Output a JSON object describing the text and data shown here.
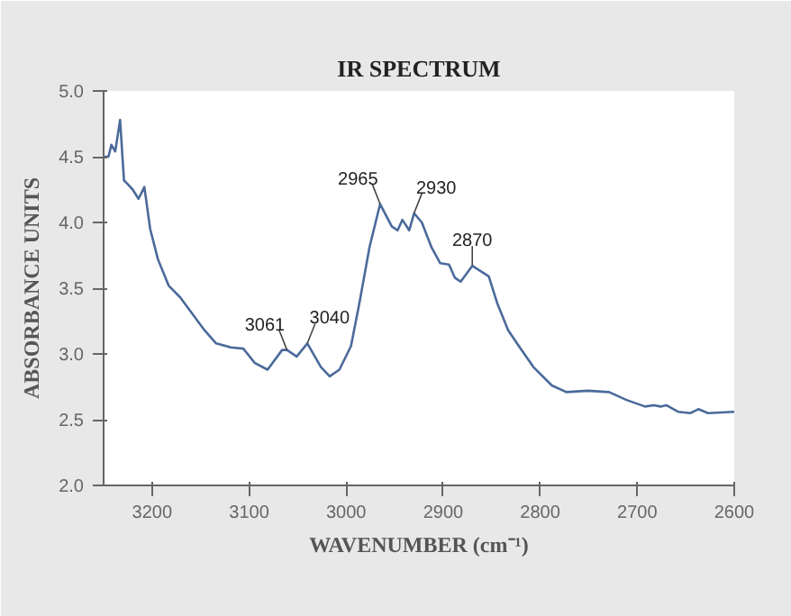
{
  "chart_data": {
    "type": "line",
    "title": "IR SPECTRUM",
    "xlabel": "WAVENUMBER (cm⁻¹)",
    "ylabel": "ABSORBANCE UNITS",
    "xlim": [
      3250,
      2600
    ],
    "xticks": [
      3200,
      3100,
      3000,
      2900,
      2800,
      2700,
      2600
    ],
    "ylim": [
      2.0,
      5.0
    ],
    "yticks": [
      {
        "value": 2.0,
        "label": "2.0"
      },
      {
        "value": 2.5,
        "label": "2.5"
      },
      {
        "value": 3.0,
        "label": "3.0"
      },
      {
        "value": 3.5,
        "label": "3.5"
      },
      {
        "value": 4.0,
        "label": "4.0"
      },
      {
        "value": 4.5,
        "label": "4.5"
      },
      {
        "value": 5.0,
        "label": "5.0"
      }
    ],
    "grid": false,
    "marker": "none",
    "line_style": "solid",
    "series": [
      {
        "color": "#4a6a9a",
        "x": [
          3250,
          3245,
          3242,
          3238,
          3233,
          3229,
          3225,
          3220,
          3214,
          3208,
          3202,
          3194,
          3183,
          3171,
          3159,
          3146,
          3134,
          3119,
          3106,
          3094,
          3081,
          3066,
          3061,
          3051,
          3040,
          3026,
          3017,
          3007,
          2995,
          2986,
          2976,
          2965,
          2953,
          2947,
          2942,
          2935,
          2930,
          2922,
          2912,
          2903,
          2894,
          2888,
          2882,
          2870,
          2853,
          2844,
          2833,
          2822,
          2807,
          2788,
          2773,
          2751,
          2729,
          2711,
          2692,
          2683,
          2676,
          2670,
          2658,
          2645,
          2637,
          2627,
          2600
        ],
        "values": [
          4.5,
          4.5,
          4.59,
          4.54,
          4.78,
          4.32,
          4.29,
          4.25,
          4.18,
          4.27,
          3.95,
          3.72,
          3.52,
          3.43,
          3.31,
          3.18,
          3.08,
          3.05,
          3.04,
          2.93,
          2.88,
          3.03,
          3.03,
          2.98,
          3.08,
          2.9,
          2.83,
          2.88,
          3.06,
          3.4,
          3.81,
          4.14,
          3.97,
          3.94,
          4.02,
          3.94,
          4.07,
          4.0,
          3.81,
          3.69,
          3.68,
          3.58,
          3.55,
          3.67,
          3.59,
          3.38,
          3.18,
          3.06,
          2.9,
          2.76,
          2.71,
          2.72,
          2.71,
          2.65,
          2.6,
          2.61,
          2.6,
          2.61,
          2.56,
          2.55,
          2.58,
          2.55,
          2.56
        ]
      }
    ],
    "annotations": [
      {
        "text": "3061",
        "x": 3061,
        "y": 3.03
      },
      {
        "text": "3040",
        "x": 3040,
        "y": 3.08
      },
      {
        "text": "2965",
        "x": 2965,
        "y": 4.14
      },
      {
        "text": "2930",
        "x": 2930,
        "y": 4.07
      },
      {
        "text": "2870",
        "x": 2870,
        "y": 3.67
      }
    ]
  }
}
